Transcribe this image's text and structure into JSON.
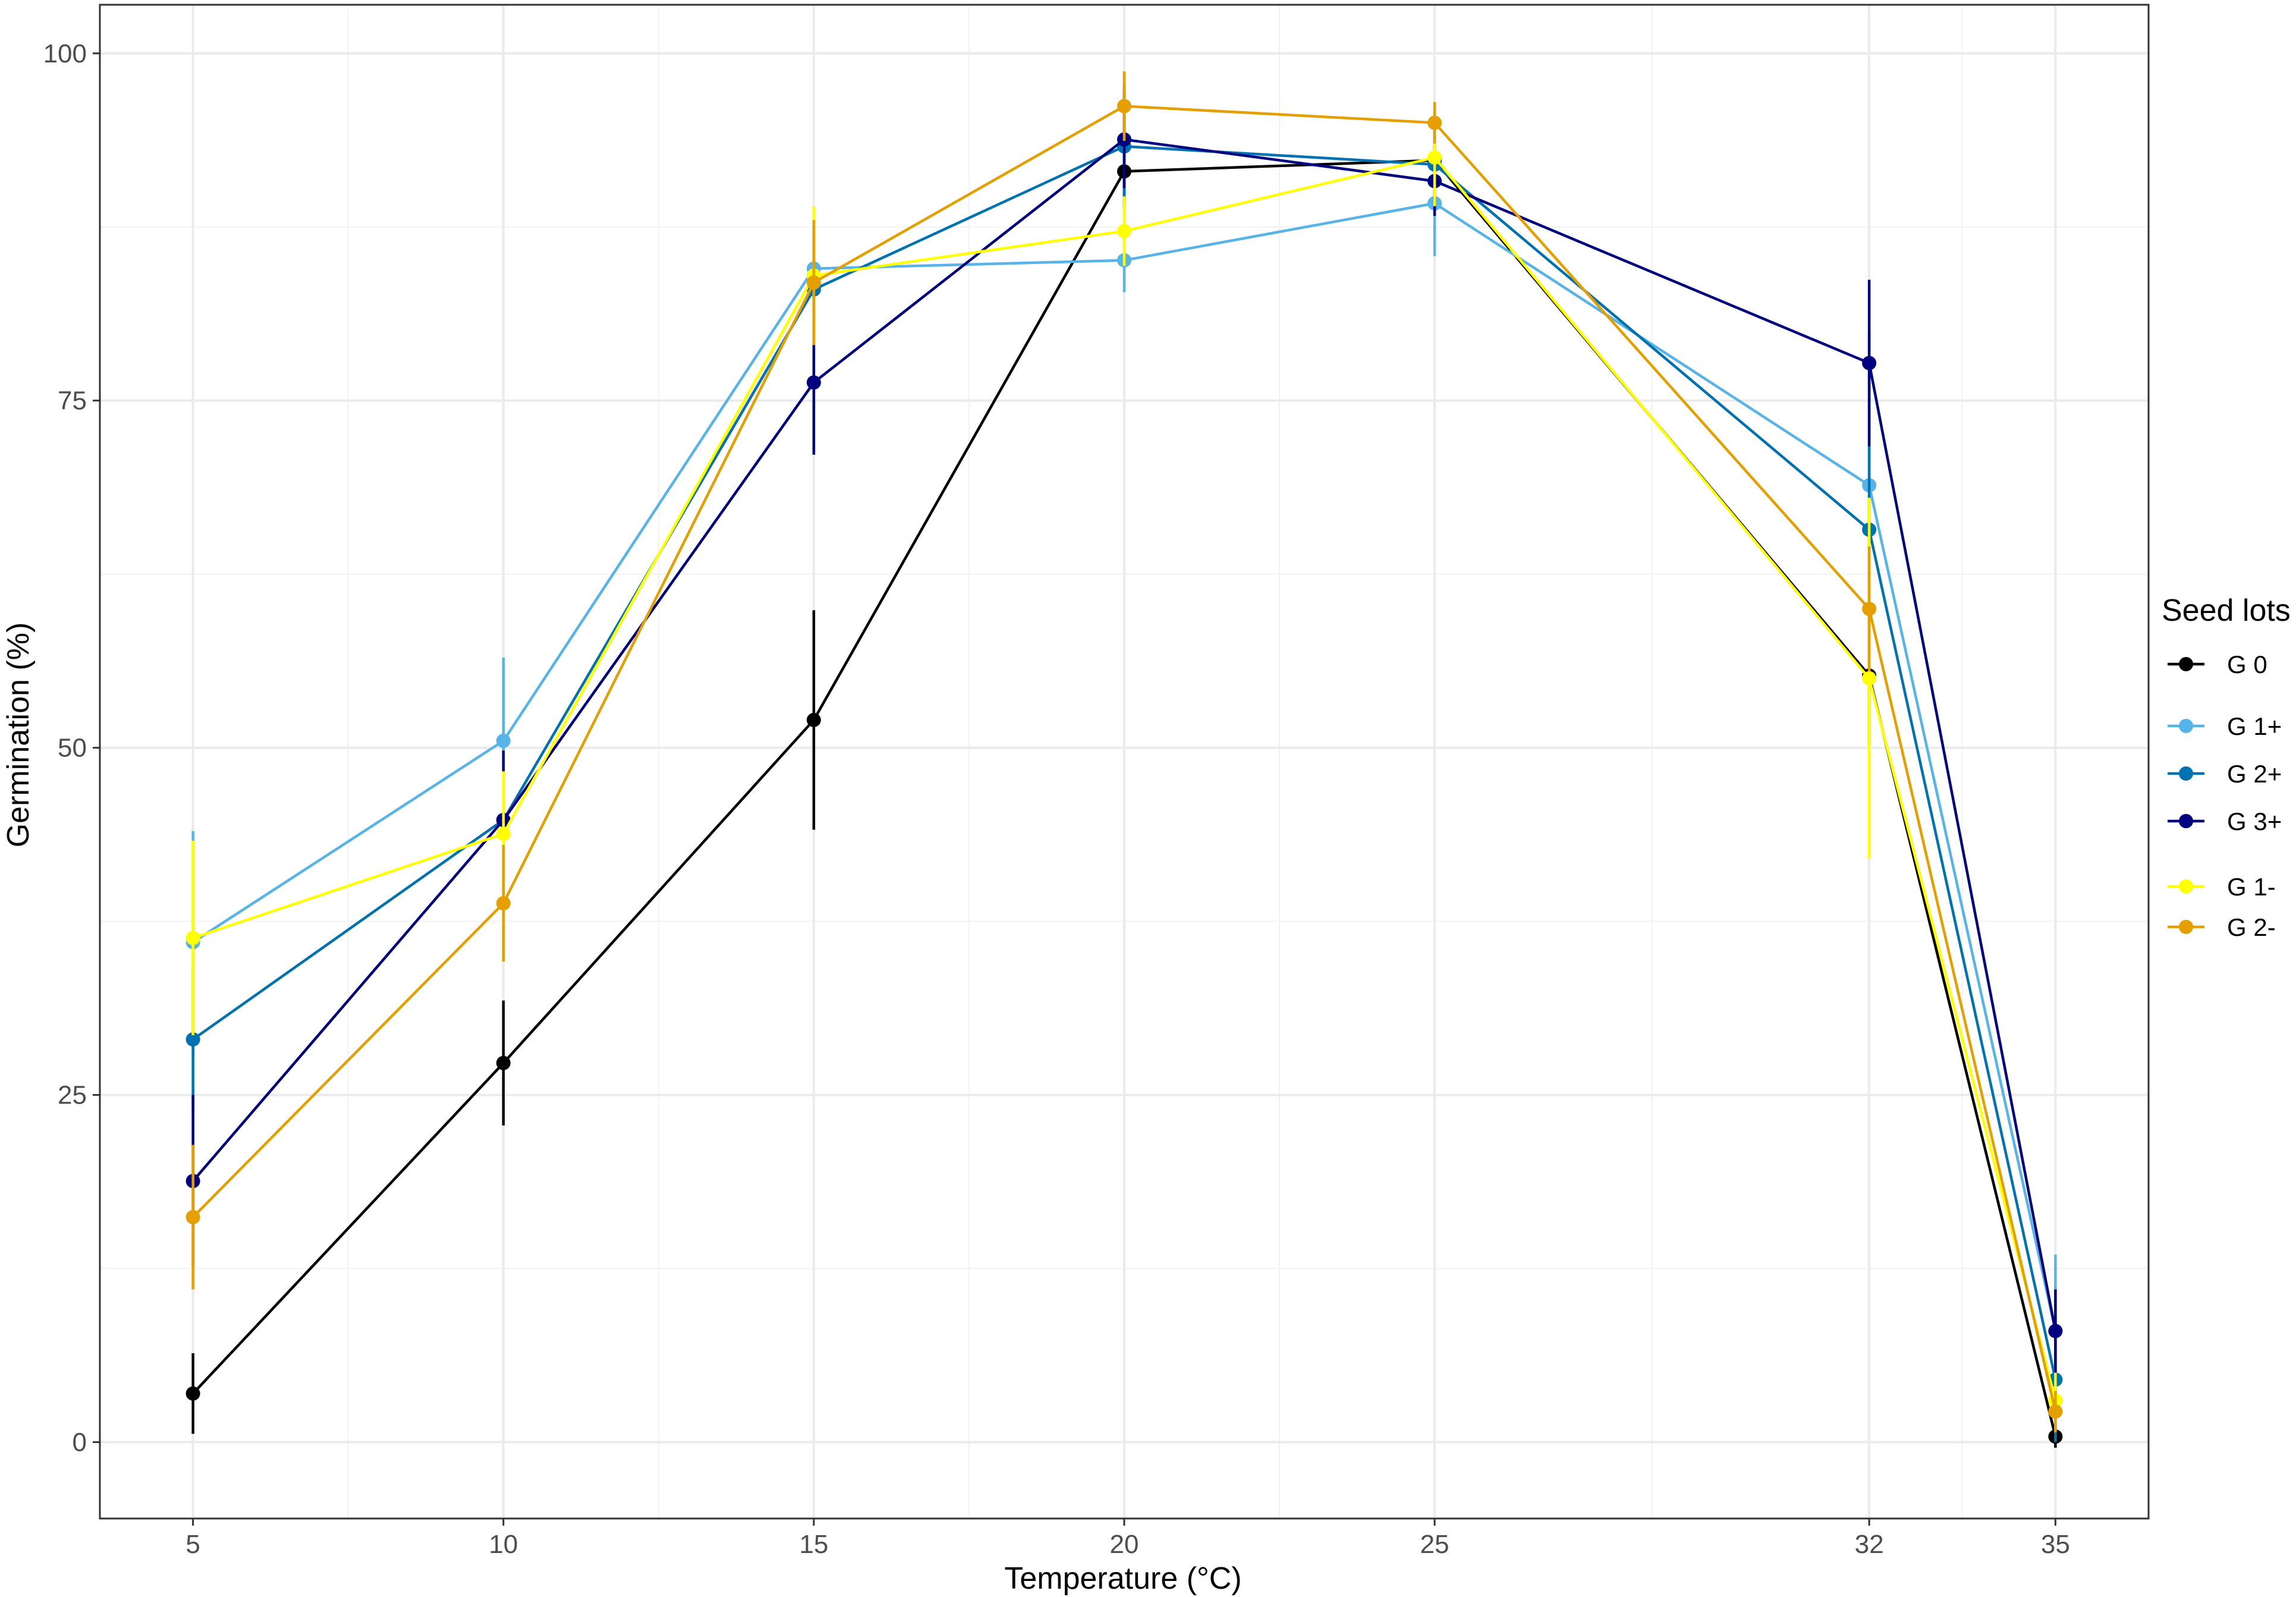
{
  "chart_data": {
    "type": "line",
    "xlabel": "Temperature (°C)",
    "ylabel": "Germination (%)",
    "x": [
      5,
      10,
      15,
      20,
      25,
      32,
      35
    ],
    "x_tick_labels": [
      "5",
      "10",
      "15",
      "20",
      "25",
      "32",
      "35"
    ],
    "y_ticks": [
      0,
      25,
      50,
      75,
      100
    ],
    "y_tick_labels": [
      "0",
      "25",
      "50",
      "75",
      "100"
    ],
    "xlim": [
      3.5,
      36.5
    ],
    "ylim": [
      -5.5,
      103.5
    ],
    "grid": true,
    "legend": {
      "title": "Seed lots",
      "position": "right"
    },
    "series": [
      {
        "name": "G 0",
        "color": "#000000",
        "values": [
          3.5,
          27.3,
          52.0,
          91.5,
          92.3,
          55.2,
          0.4
        ],
        "errors": [
          2.9,
          4.5,
          7.9,
          2.5,
          3.5,
          5.0,
          0.8
        ]
      },
      {
        "name": "G 1+",
        "color": "#56b4e9",
        "values": [
          36.0,
          50.5,
          84.5,
          85.1,
          89.2,
          68.9,
          8.0
        ],
        "errors": [
          8.0,
          6.0,
          3.5,
          2.3,
          3.8,
          11.0,
          5.5
        ]
      },
      {
        "name": "G 2+",
        "color": "#0072b2",
        "values": [
          29.0,
          44.8,
          83.0,
          93.3,
          92.0,
          65.7,
          4.5
        ],
        "errors": [
          5.0,
          4.0,
          4.2,
          4.5,
          2.5,
          6.0,
          4.5
        ]
      },
      {
        "name": "G 3+",
        "color": "#000080",
        "values": [
          18.8,
          44.8,
          76.3,
          93.8,
          90.8,
          77.7,
          8.0
        ],
        "errors": [
          6.2,
          5.0,
          5.2,
          3.5,
          2.5,
          6.0,
          3.0
        ]
      },
      {
        "name": "G 1-",
        "color": "#ffff00",
        "values": [
          36.3,
          43.8,
          84.0,
          87.2,
          92.5,
          55.0,
          3.0
        ],
        "errors": [
          7.0,
          4.5,
          5.0,
          2.5,
          3.5,
          13.0,
          2.0
        ]
      },
      {
        "name": "G 2-",
        "color": "#e69f00",
        "values": [
          16.2,
          38.8,
          83.5,
          96.2,
          95.0,
          60.0,
          2.2
        ],
        "errors": [
          5.2,
          4.2,
          4.5,
          2.5,
          1.5,
          4.5,
          1.5
        ]
      }
    ]
  }
}
